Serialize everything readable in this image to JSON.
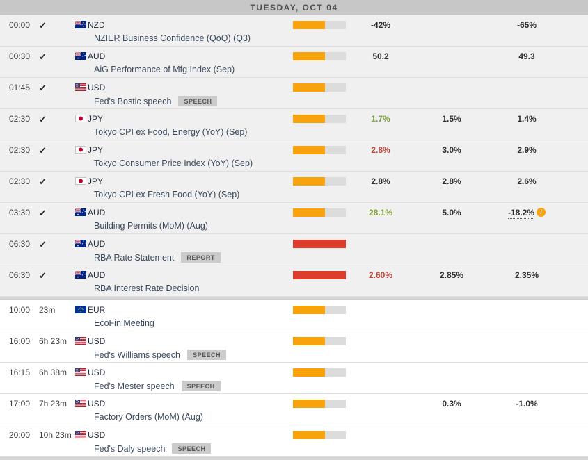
{
  "header": {
    "date_label": "TUESDAY, OCT 04"
  },
  "colors": {
    "volatility_medium": "#f8a20c",
    "volatility_high": "#dd3d2d",
    "actual_positive": "#7fa03a",
    "actual_negative": "#c0453d",
    "header_bg": "#c7c7c7",
    "past_row_bg": "#f0f0f0"
  },
  "events": [
    {
      "time": "00:00",
      "checked": true,
      "countdown": "",
      "currency": "NZD",
      "name": "NZIER Business Confidence (QoQ) (Q3)",
      "tag": "",
      "volatility": "medium",
      "actual": "-42%",
      "actual_tone": "neutral",
      "consensus": "",
      "previous": "-65%",
      "previous_has_info": false
    },
    {
      "time": "00:30",
      "checked": true,
      "countdown": "",
      "currency": "AUD",
      "name": "AiG Performance of Mfg Index (Sep)",
      "tag": "",
      "volatility": "medium",
      "actual": "50.2",
      "actual_tone": "neutral",
      "consensus": "",
      "previous": "49.3",
      "previous_has_info": false
    },
    {
      "time": "01:45",
      "checked": true,
      "countdown": "",
      "currency": "USD",
      "name": "Fed's Bostic speech",
      "tag": "SPEECH",
      "volatility": "medium",
      "actual": "",
      "actual_tone": "neutral",
      "consensus": "",
      "previous": "",
      "previous_has_info": false
    },
    {
      "time": "02:30",
      "checked": true,
      "countdown": "",
      "currency": "JPY",
      "name": "Tokyo CPI ex Food, Energy (YoY) (Sep)",
      "tag": "",
      "volatility": "medium",
      "actual": "1.7%",
      "actual_tone": "positive",
      "consensus": "1.5%",
      "previous": "1.4%",
      "previous_has_info": false
    },
    {
      "time": "02:30",
      "checked": true,
      "countdown": "",
      "currency": "JPY",
      "name": "Tokyo Consumer Price Index (YoY) (Sep)",
      "tag": "",
      "volatility": "medium",
      "actual": "2.8%",
      "actual_tone": "negative",
      "consensus": "3.0%",
      "previous": "2.9%",
      "previous_has_info": false
    },
    {
      "time": "02:30",
      "checked": true,
      "countdown": "",
      "currency": "JPY",
      "name": "Tokyo CPI ex Fresh Food (YoY) (Sep)",
      "tag": "",
      "volatility": "medium",
      "actual": "2.8%",
      "actual_tone": "neutral",
      "consensus": "2.8%",
      "previous": "2.6%",
      "previous_has_info": false
    },
    {
      "time": "03:30",
      "checked": true,
      "countdown": "",
      "currency": "AUD",
      "name": "Building Permits (MoM) (Aug)",
      "tag": "",
      "volatility": "medium",
      "actual": "28.1%",
      "actual_tone": "positive",
      "consensus": "5.0%",
      "previous": "-18.2%",
      "previous_has_info": true
    },
    {
      "time": "06:30",
      "checked": true,
      "countdown": "",
      "currency": "AUD",
      "name": "RBA Rate Statement",
      "tag": "REPORT",
      "volatility": "high",
      "actual": "",
      "actual_tone": "neutral",
      "consensus": "",
      "previous": "",
      "previous_has_info": false
    },
    {
      "time": "06:30",
      "checked": true,
      "countdown": "",
      "currency": "AUD",
      "name": "RBA Interest Rate Decision",
      "tag": "",
      "volatility": "high",
      "actual": "2.60%",
      "actual_tone": "negative",
      "consensus": "2.85%",
      "previous": "2.35%",
      "previous_has_info": false
    },
    {
      "time": "10:00",
      "checked": false,
      "countdown": "23m",
      "currency": "EUR",
      "name": "EcoFin Meeting",
      "tag": "",
      "volatility": "medium",
      "actual": "",
      "actual_tone": "neutral",
      "consensus": "",
      "previous": "",
      "previous_has_info": false
    },
    {
      "time": "16:00",
      "checked": false,
      "countdown": "6h 23m",
      "currency": "USD",
      "name": "Fed's Williams speech",
      "tag": "SPEECH",
      "volatility": "medium",
      "actual": "",
      "actual_tone": "neutral",
      "consensus": "",
      "previous": "",
      "previous_has_info": false
    },
    {
      "time": "16:15",
      "checked": false,
      "countdown": "6h 38m",
      "currency": "USD",
      "name": "Fed's Mester speech",
      "tag": "SPEECH",
      "volatility": "medium",
      "actual": "",
      "actual_tone": "neutral",
      "consensus": "",
      "previous": "",
      "previous_has_info": false
    },
    {
      "time": "17:00",
      "checked": false,
      "countdown": "7h 23m",
      "currency": "USD",
      "name": "Factory Orders (MoM) (Aug)",
      "tag": "",
      "volatility": "medium",
      "actual": "",
      "actual_tone": "neutral",
      "consensus": "0.3%",
      "previous": "-1.0%",
      "previous_has_info": false
    },
    {
      "time": "20:00",
      "checked": false,
      "countdown": "10h 23m",
      "currency": "USD",
      "name": "Fed's Daly speech",
      "tag": "SPEECH",
      "volatility": "medium",
      "actual": "",
      "actual_tone": "neutral",
      "consensus": "",
      "previous": "",
      "previous_has_info": false
    }
  ]
}
